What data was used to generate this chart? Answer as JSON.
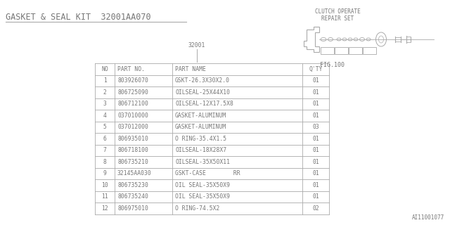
{
  "title": "GASKET & SEAL KIT  32001AA070",
  "bg_color": "#ffffff",
  "fig_label": "32001",
  "fig_num": "FIG.100",
  "clutch_label1": "CLUTCH OPERATE",
  "clutch_label2": "REPAIR SET",
  "watermark": "AI11001077",
  "table_headers": [
    "NO",
    "PART NO.",
    "PART NAME",
    "Q'TY"
  ],
  "table_rows": [
    [
      "1",
      "803926070",
      "GSKT-26.3X30X2.0",
      "01"
    ],
    [
      "2",
      "806725090",
      "OILSEAL-25X44X10",
      "01"
    ],
    [
      "3",
      "806712100",
      "OILSEAL-12X17.5X8",
      "01"
    ],
    [
      "4",
      "037010000",
      "GASKET-ALUMINUM",
      "01"
    ],
    [
      "5",
      "037012000",
      "GASKET-ALUMINUM",
      "03"
    ],
    [
      "6",
      "806935010",
      "O RING-35.4X1.5",
      "01"
    ],
    [
      "7",
      "806718100",
      "OILSEAL-18X28X7",
      "01"
    ],
    [
      "8",
      "806735210",
      "OILSEAL-35X50X11",
      "01"
    ],
    [
      "9",
      "32145AA030",
      "GSKT-CASE        RR",
      "01"
    ],
    [
      "10",
      "806735230",
      "OIL SEAL-35X50X9",
      "01"
    ],
    [
      "11",
      "806735240",
      "OIL SEAL-35X50X9",
      "01"
    ],
    [
      "12",
      "806975010",
      "O RING-74.5X2",
      "02"
    ]
  ],
  "font_color": "#777777",
  "line_color": "#aaaaaa",
  "font_size": 5.8,
  "title_fontsize": 8.5
}
